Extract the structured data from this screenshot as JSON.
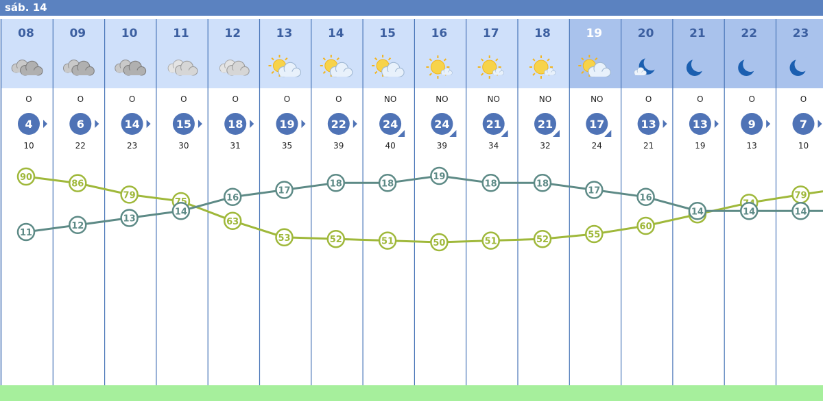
{
  "day_label": "sáb. 14",
  "colors": {
    "top_bar": "#5b82c0",
    "day_column_bg": "#cfe0fa",
    "highlight_column_bg": "#a9c2ec",
    "night_column_bg": "#a9c2ec",
    "divider": "#4a76b8",
    "hour_text": "#3c5fa0",
    "highlight_hour_text": "#ffffff",
    "wind_circle": "#4f73b6",
    "humidity_line": "#9fb83a",
    "temperature_line": "#5d8a86",
    "bottom_strip": "#a6ef9c"
  },
  "chart_data": {
    "type": "line",
    "title": "",
    "xlabel": "",
    "ylabel": "",
    "x": [
      "08",
      "09",
      "10",
      "11",
      "12",
      "13",
      "14",
      "15",
      "16",
      "17",
      "18",
      "19",
      "20",
      "21",
      "22",
      "23"
    ],
    "sky_icons": [
      "cloud-icon",
      "cloud-icon",
      "cloud-icon",
      "cloud-light-icon",
      "cloud-light-icon",
      "sun-cloud-icon",
      "sun-cloud-icon",
      "sun-cloud-icon",
      "sun-icon",
      "sun-icon",
      "sun-icon",
      "sun-cloud-icon",
      "moon-cloud-icon",
      "moon-icon",
      "moon-icon",
      "moon-icon"
    ],
    "highlight_hour": "19",
    "night_hours": [
      "20",
      "21",
      "22",
      "23"
    ],
    "wind_direction": [
      "O",
      "O",
      "O",
      "O",
      "O",
      "O",
      "O",
      "NO",
      "NO",
      "NO",
      "NO",
      "NO",
      "O",
      "O",
      "O",
      "O"
    ],
    "wind_speed": [
      4,
      6,
      14,
      15,
      18,
      19,
      22,
      24,
      24,
      21,
      21,
      17,
      13,
      13,
      9,
      7
    ],
    "wind_gust": [
      10,
      22,
      23,
      30,
      31,
      35,
      39,
      40,
      39,
      34,
      32,
      24,
      21,
      19,
      13,
      10
    ],
    "series": [
      {
        "values": [
          90,
          86,
          79,
          75,
          63,
          53,
          52,
          51,
          50,
          51,
          52,
          55,
          60,
          67,
          74,
          79
        ],
        "color": "#9fb83a"
      },
      {
        "values": [
          11,
          12,
          13,
          14,
          16,
          17,
          18,
          18,
          19,
          18,
          18,
          17,
          16,
          14,
          14,
          14
        ],
        "color": "#5d8a86"
      }
    ],
    "grid": true,
    "legend": "none"
  }
}
